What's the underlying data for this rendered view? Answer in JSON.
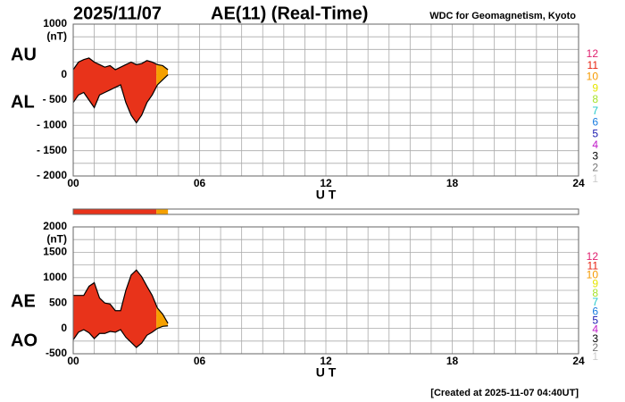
{
  "header": {
    "date": "2025/11/07",
    "title": "AE(11) (Real-Time)",
    "source": "WDC for Geomagnetism, Kyoto"
  },
  "footer": "[Created at 2025-11-07 04:40UT]",
  "station_coverage": [
    {
      "from": 0,
      "to": 3.95,
      "color": "#e8331a"
    },
    {
      "from": 3.95,
      "to": 4.5,
      "color": "#f5a000"
    }
  ],
  "station_scale": [
    {
      "label": "12",
      "color": "#e0206f"
    },
    {
      "label": "11",
      "color": "#e8210f"
    },
    {
      "label": "10",
      "color": "#f59a00"
    },
    {
      "label": "9",
      "color": "#e6e600"
    },
    {
      "label": "8",
      "color": "#a6e22a"
    },
    {
      "label": "7",
      "color": "#21c8c8"
    },
    {
      "label": "6",
      "color": "#1a7de0"
    },
    {
      "label": "5",
      "color": "#1a1ab0"
    },
    {
      "label": "4",
      "color": "#c01ac8"
    },
    {
      "label": "3",
      "color": "#000000"
    },
    {
      "label": "2",
      "color": "#777777"
    },
    {
      "label": "1",
      "color": "#cccccc"
    }
  ],
  "chart_data": [
    {
      "type": "line",
      "unit": "(nT)",
      "xlabel": "U T",
      "x": [
        0,
        0.25,
        0.5,
        0.75,
        1,
        1.25,
        1.5,
        1.75,
        2,
        2.25,
        2.5,
        2.75,
        3,
        3.25,
        3.5,
        3.75,
        4,
        4.25,
        4.5
      ],
      "series": [
        {
          "name": "AU",
          "color": "#000000",
          "values": [
            100,
            250,
            300,
            330,
            250,
            200,
            150,
            180,
            100,
            150,
            200,
            250,
            200,
            220,
            280,
            250,
            200,
            180,
            100
          ]
        },
        {
          "name": "AL",
          "color": "#000000",
          "values": [
            -550,
            -400,
            -350,
            -500,
            -650,
            -400,
            -350,
            -300,
            -250,
            -200,
            -550,
            -800,
            -950,
            -800,
            -550,
            -400,
            -200,
            -100,
            0
          ]
        }
      ],
      "xlim": [
        0,
        24
      ],
      "xticks": [
        {
          "value": 0,
          "label": "00"
        },
        {
          "value": 6,
          "label": "06"
        },
        {
          "value": 12,
          "label": "12"
        },
        {
          "value": 18,
          "label": "18"
        },
        {
          "value": 24,
          "label": "24"
        }
      ],
      "ylim": [
        -2000,
        1000
      ],
      "yticks": [
        1000,
        0,
        {
          "value": -500,
          "label": "- 500"
        },
        {
          "value": -1000,
          "label": "- 1000"
        },
        {
          "value": -1500,
          "label": "- 1500"
        },
        {
          "value": -2000,
          "label": "- 2000"
        }
      ],
      "grid": true,
      "xgrid_step": 1,
      "ygrid_step": 250
    },
    {
      "type": "line",
      "unit": "(nT)",
      "xlabel": "U T",
      "x": [
        0,
        0.25,
        0.5,
        0.75,
        1,
        1.25,
        1.5,
        1.75,
        2,
        2.25,
        2.5,
        2.75,
        3,
        3.25,
        3.5,
        3.75,
        4,
        4.25,
        4.5
      ],
      "series": [
        {
          "name": "AE",
          "color": "#000000",
          "values": [
            650,
            650,
            650,
            830,
            900,
            600,
            500,
            480,
            350,
            350,
            750,
            1050,
            1150,
            1020,
            830,
            650,
            400,
            280,
            100
          ]
        },
        {
          "name": "AO",
          "color": "#000000",
          "values": [
            -225,
            -75,
            -25,
            -85,
            -200,
            -100,
            -100,
            -60,
            -75,
            -25,
            -175,
            -275,
            -375,
            -290,
            -135,
            -75,
            0,
            40,
            50
          ]
        }
      ],
      "xlim": [
        0,
        24
      ],
      "xticks": [
        {
          "value": 0,
          "label": "00"
        },
        {
          "value": 6,
          "label": "06"
        },
        {
          "value": 12,
          "label": "12"
        },
        {
          "value": 18,
          "label": "18"
        },
        {
          "value": 24,
          "label": "24"
        }
      ],
      "ylim": [
        -500,
        2000
      ],
      "yticks": [
        2000,
        1500,
        1000,
        500,
        0,
        {
          "value": -500,
          "label": "-500"
        }
      ],
      "grid": true,
      "xgrid_step": 1,
      "ygrid_step": 250
    }
  ]
}
